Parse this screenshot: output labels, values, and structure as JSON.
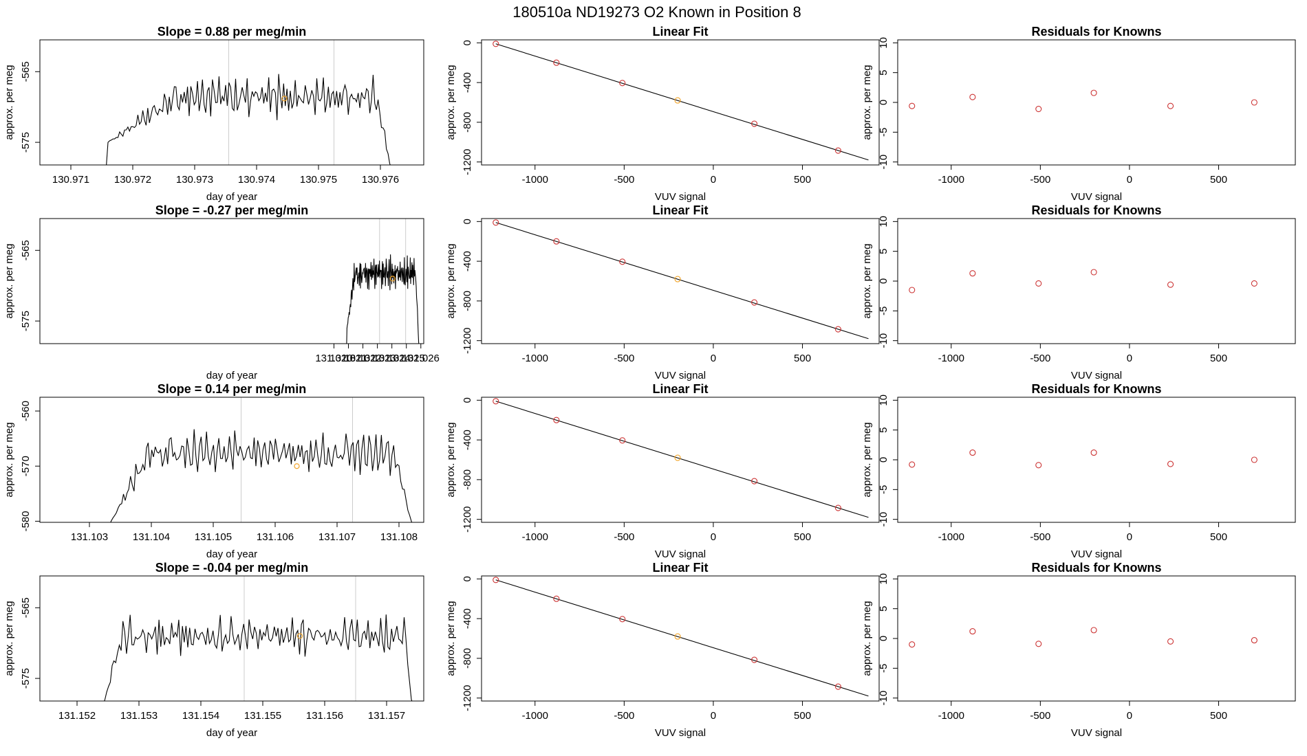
{
  "figure": {
    "title": "180510a      ND19273    O2 Known in Position  8"
  },
  "colors": {
    "axis": "#000000",
    "series_line": "#000000",
    "known_points": "#cc3333",
    "highlight_point": "#f2a428",
    "vertical_markers": "#cccccc"
  },
  "chart_data": [
    {
      "type": "line",
      "row": 0,
      "col": 0,
      "title": "Slope =  0.88  per meg/min",
      "xlabel": "day of year",
      "ylabel": "approx. per meg",
      "xlim": [
        130.9705,
        130.9767
      ],
      "ylim": [
        -578.2,
        -560.5
      ],
      "xticks": [
        "130.971",
        "130.972",
        "130.973",
        "130.974",
        "130.975",
        "130.976"
      ],
      "yticks": [
        "-565",
        "-575"
      ],
      "xtick_values": [
        130.971,
        130.972,
        130.973,
        130.974,
        130.975,
        130.976
      ],
      "ytick_values": [
        -565,
        -575
      ],
      "series_x_range": [
        130.9716,
        130.97615
      ],
      "series_mean": -568.6,
      "series_amplitude": 2.0,
      "series_ramp_in": 0.0013,
      "series_ramp_out": 0.0002,
      "series_start_value": -575,
      "series_end_value": -578,
      "vlines": [
        130.97355,
        130.97525
      ],
      "marker_point": {
        "x": 130.97445,
        "y": -568.8
      }
    },
    {
      "type": "scatter",
      "row": 0,
      "col": 1,
      "title": "Linear Fit",
      "xlabel": "VUV signal",
      "ylabel": "approx. per meg",
      "xlim": [
        -1300,
        930
      ],
      "ylim": [
        -1230,
        30
      ],
      "xticks": [
        "-1000",
        "-500",
        "0",
        "500"
      ],
      "xtick_values": [
        -1000,
        -500,
        0,
        500
      ],
      "yticks": [
        "0",
        "-400",
        "-800",
        "-1200"
      ],
      "ytick_values": [
        0,
        -400,
        -800,
        -1200
      ],
      "x": [
        -1220,
        -880,
        -510,
        -200,
        230,
        700
      ],
      "y": [
        -10,
        -200,
        -405,
        -580,
        -815,
        -1085
      ],
      "highlight_index": 3,
      "fit_line": {
        "x": [
          -1220,
          870
        ],
        "y": [
          -10,
          -1180
        ]
      }
    },
    {
      "type": "scatter",
      "row": 0,
      "col": 2,
      "title": "Residuals for Knowns",
      "xlabel": "VUV signal",
      "ylabel": "approx. per meg",
      "xlim": [
        -1300,
        930
      ],
      "ylim": [
        -10.5,
        10.5
      ],
      "xticks": [
        "-1000",
        "-500",
        "0",
        "500"
      ],
      "xtick_values": [
        -1000,
        -500,
        0,
        500
      ],
      "yticks": [
        "10",
        "5",
        "0",
        "-5",
        "-10"
      ],
      "ytick_values": [
        10,
        5,
        0,
        -5,
        -10
      ],
      "x": [
        -1220,
        -880,
        -510,
        -200,
        230,
        700
      ],
      "y": [
        -0.6,
        0.9,
        -1.1,
        1.6,
        -0.6,
        0.0
      ]
    },
    {
      "type": "line",
      "row": 1,
      "col": 0,
      "title": "Slope =  -0.27  per meg/min",
      "xlabel": "day of year",
      "ylabel": "approx. per meg",
      "xlim": [
        130.9997,
        131.0262
      ],
      "ylim": [
        -578.2,
        -560.5
      ],
      "xticks": [
        "131.020",
        "131.021",
        "131.022",
        "131.023",
        "131.024",
        "131.025",
        "131.026"
      ],
      "yticks": [
        "-565",
        "-575"
      ],
      "xtick_values": [
        131.02,
        131.021,
        131.022,
        131.023,
        131.024,
        131.025,
        131.026
      ],
      "ytick_values": [
        -565,
        -575
      ],
      "series_x_range": [
        131.0209,
        131.02585
      ],
      "series_mean": -568.3,
      "series_amplitude": 1.7,
      "series_ramp_in": 0.0006,
      "series_ramp_out": 0.0002,
      "series_start_value": -576,
      "series_end_value": -578,
      "vlines": [
        131.02315,
        131.02495
      ],
      "marker_point": {
        "x": 131.02405,
        "y": -569.0
      }
    },
    {
      "type": "scatter",
      "row": 1,
      "col": 1,
      "title": "Linear Fit",
      "xlabel": "VUV signal",
      "ylabel": "approx. per meg",
      "xlim": [
        -1300,
        930
      ],
      "ylim": [
        -1230,
        30
      ],
      "xticks": [
        "-1000",
        "-500",
        "0",
        "500"
      ],
      "xtick_values": [
        -1000,
        -500,
        0,
        500
      ],
      "yticks": [
        "0",
        "-400",
        "-800",
        "-1200"
      ],
      "ytick_values": [
        0,
        -400,
        -800,
        -1200
      ],
      "x": [
        -1220,
        -880,
        -510,
        -200,
        230,
        700
      ],
      "y": [
        -10,
        -200,
        -405,
        -580,
        -815,
        -1085
      ],
      "highlight_index": 3,
      "fit_line": {
        "x": [
          -1220,
          870
        ],
        "y": [
          -10,
          -1180
        ]
      }
    },
    {
      "type": "scatter",
      "row": 1,
      "col": 2,
      "title": "Residuals for Knowns",
      "xlabel": "VUV signal",
      "ylabel": "approx. per meg",
      "xlim": [
        -1300,
        930
      ],
      "ylim": [
        -10.5,
        10.5
      ],
      "xticks": [
        "-1000",
        "-500",
        "0",
        "500"
      ],
      "xtick_values": [
        -1000,
        -500,
        0,
        500
      ],
      "yticks": [
        "10",
        "5",
        "0",
        "-5",
        "-10"
      ],
      "ytick_values": [
        10,
        5,
        0,
        -5,
        -10
      ],
      "x": [
        -1220,
        -880,
        -510,
        -200,
        230,
        700
      ],
      "y": [
        -1.5,
        1.3,
        -0.4,
        1.5,
        -0.6,
        -0.4
      ]
    },
    {
      "type": "line",
      "row": 2,
      "col": 0,
      "title": "Slope =  0.14  per meg/min",
      "xlabel": "day of year",
      "ylabel": "approx. per meg",
      "xlim": [
        131.1022,
        131.1084
      ],
      "ylim": [
        -580.2,
        -557.5
      ],
      "xticks": [
        "131.103",
        "131.104",
        "131.105",
        "131.106",
        "131.107",
        "131.108"
      ],
      "yticks": [
        "-560",
        "-570",
        "-580"
      ],
      "xtick_values": [
        131.103,
        131.104,
        131.105,
        131.106,
        131.107,
        131.108
      ],
      "ytick_values": [
        -560,
        -570,
        -580
      ],
      "series_x_range": [
        131.10335,
        131.1082
      ],
      "series_mean": -567.6,
      "series_amplitude": 2.6,
      "series_ramp_in": 0.0007,
      "series_ramp_out": 0.0003,
      "series_start_value": -580,
      "series_end_value": -580,
      "vlines": [
        131.10545,
        131.10725
      ],
      "marker_point": {
        "x": 131.10635,
        "y": -570.0
      }
    },
    {
      "type": "scatter",
      "row": 2,
      "col": 1,
      "title": "Linear Fit",
      "xlabel": "VUV signal",
      "ylabel": "approx. per meg",
      "xlim": [
        -1300,
        930
      ],
      "ylim": [
        -1230,
        30
      ],
      "xticks": [
        "-1000",
        "-500",
        "0",
        "500"
      ],
      "xtick_values": [
        -1000,
        -500,
        0,
        500
      ],
      "yticks": [
        "0",
        "-400",
        "-800",
        "-1200"
      ],
      "ytick_values": [
        0,
        -400,
        -800,
        -1200
      ],
      "x": [
        -1220,
        -880,
        -510,
        -200,
        230,
        700
      ],
      "y": [
        -10,
        -200,
        -405,
        -580,
        -815,
        -1085
      ],
      "highlight_index": 3,
      "fit_line": {
        "x": [
          -1220,
          870
        ],
        "y": [
          -10,
          -1180
        ]
      }
    },
    {
      "type": "scatter",
      "row": 2,
      "col": 2,
      "title": "Residuals for Knowns",
      "xlabel": "VUV signal",
      "ylabel": "approx. per meg",
      "xlim": [
        -1300,
        930
      ],
      "ylim": [
        -10.5,
        10.5
      ],
      "xticks": [
        "-1000",
        "-500",
        "0",
        "500"
      ],
      "xtick_values": [
        -1000,
        -500,
        0,
        500
      ],
      "yticks": [
        "10",
        "5",
        "0",
        "-5",
        "-10"
      ],
      "ytick_values": [
        10,
        5,
        0,
        -5,
        -10
      ],
      "x": [
        -1220,
        -880,
        -510,
        -200,
        230,
        700
      ],
      "y": [
        -0.8,
        1.2,
        -0.9,
        1.2,
        -0.7,
        0.0
      ]
    },
    {
      "type": "line",
      "row": 3,
      "col": 0,
      "title": "Slope =  -0.04  per meg/min",
      "xlabel": "day of year",
      "ylabel": "approx. per meg",
      "xlim": [
        131.1514,
        131.1576
      ],
      "ylim": [
        -578.2,
        -560.5
      ],
      "xticks": [
        "131.152",
        "131.153",
        "131.154",
        "131.155",
        "131.156",
        "131.157"
      ],
      "yticks": [
        "-565",
        "-575"
      ],
      "xtick_values": [
        131.152,
        131.153,
        131.154,
        131.155,
        131.156,
        131.157
      ],
      "ytick_values": [
        -565,
        -575
      ],
      "series_x_range": [
        131.15245,
        131.1574
      ],
      "series_mean": -569.0,
      "series_amplitude": 2.0,
      "series_ramp_in": 0.0003,
      "series_ramp_out": 0.0001,
      "series_start_value": -578,
      "series_end_value": -578,
      "vlines": [
        131.1547,
        131.1565
      ],
      "marker_point": {
        "x": 131.1556,
        "y": -569.0
      }
    },
    {
      "type": "scatter",
      "row": 3,
      "col": 1,
      "title": "Linear Fit",
      "xlabel": "VUV signal",
      "ylabel": "approx. per meg",
      "xlim": [
        -1300,
        930
      ],
      "ylim": [
        -1230,
        30
      ],
      "xticks": [
        "-1000",
        "-500",
        "0",
        "500"
      ],
      "xtick_values": [
        -1000,
        -500,
        0,
        500
      ],
      "yticks": [
        "0",
        "-400",
        "-800",
        "-1200"
      ],
      "ytick_values": [
        0,
        -400,
        -800,
        -1200
      ],
      "x": [
        -1220,
        -880,
        -510,
        -200,
        230,
        700
      ],
      "y": [
        -10,
        -200,
        -405,
        -580,
        -815,
        -1085
      ],
      "highlight_index": 3,
      "fit_line": {
        "x": [
          -1220,
          870
        ],
        "y": [
          -10,
          -1180
        ]
      }
    },
    {
      "type": "scatter",
      "row": 3,
      "col": 2,
      "title": "Residuals for Knowns",
      "xlabel": "VUV signal",
      "ylabel": "approx. per meg",
      "xlim": [
        -1300,
        930
      ],
      "ylim": [
        -10.5,
        10.5
      ],
      "xticks": [
        "-1000",
        "-500",
        "0",
        "500"
      ],
      "xtick_values": [
        -1000,
        -500,
        0,
        500
      ],
      "yticks": [
        "10",
        "5",
        "0",
        "-5",
        "-10"
      ],
      "ytick_values": [
        10,
        5,
        0,
        -5,
        -10
      ],
      "x": [
        -1220,
        -880,
        -510,
        -200,
        230,
        700
      ],
      "y": [
        -1.0,
        1.2,
        -0.9,
        1.4,
        -0.5,
        -0.3
      ]
    }
  ]
}
